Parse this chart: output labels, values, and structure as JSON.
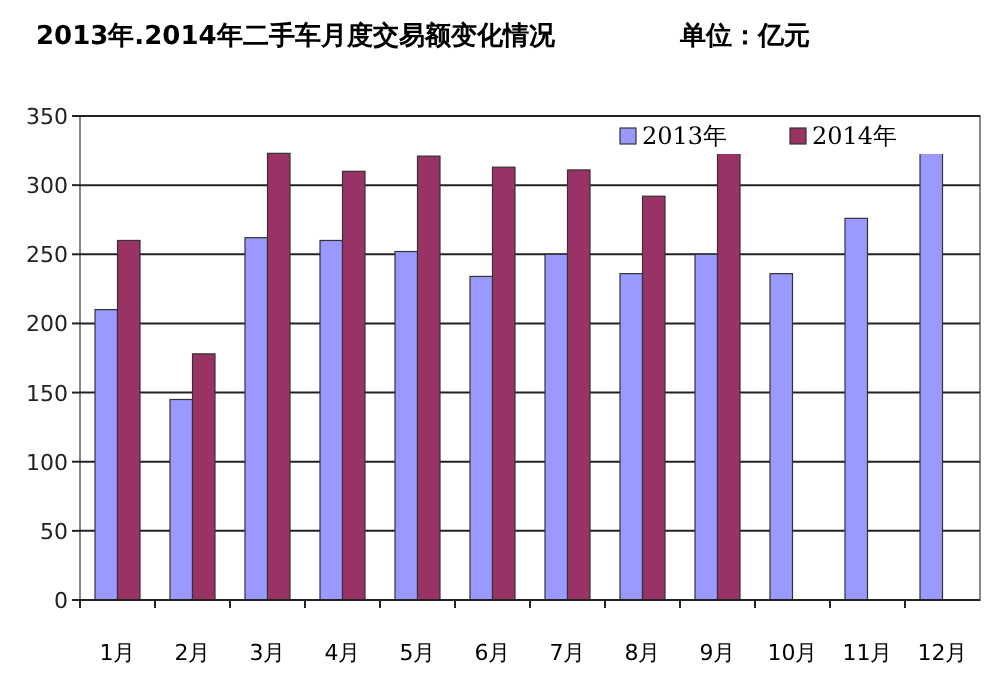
{
  "chart_data": {
    "type": "bar",
    "title": "2013年.2014年二手车月度交易额变化情况",
    "subtitle": "单位：亿元",
    "categories": [
      "1月",
      "2月",
      "3月",
      "4月",
      "5月",
      "6月",
      "7月",
      "8月",
      "9月",
      "10月",
      "11月",
      "12月"
    ],
    "series": [
      {
        "name": "2013年",
        "color": "#9999ff",
        "values": [
          210,
          145,
          262,
          260,
          252,
          234,
          250,
          236,
          250,
          236,
          276,
          324
        ]
      },
      {
        "name": "2014年",
        "color": "#993366",
        "values": [
          260,
          178,
          323,
          310,
          321,
          313,
          311,
          292,
          323,
          null,
          null,
          null
        ]
      }
    ],
    "ylim": [
      0,
      350
    ],
    "yticks": [
      0,
      50,
      100,
      150,
      200,
      250,
      300,
      350
    ],
    "grid": "y",
    "legend": "top right"
  }
}
